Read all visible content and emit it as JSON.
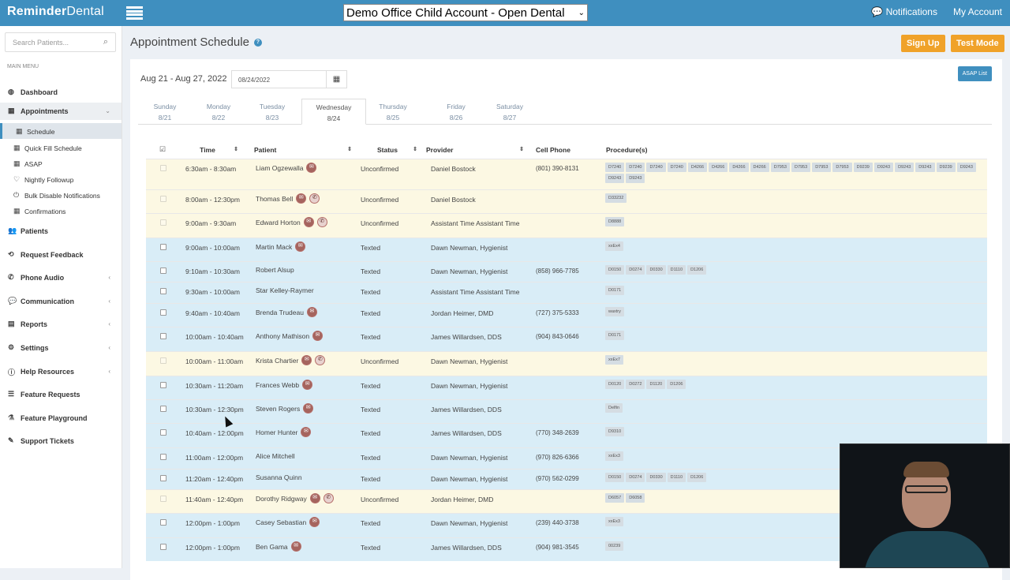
{
  "app": {
    "logo_bold": "Reminder",
    "logo_light": "Dental",
    "office": "Demo Office Child Account - Open Dental",
    "notifications": "Notifications",
    "my_account": "My Account"
  },
  "sidebar": {
    "search_placeholder": "Search Patients...",
    "main_menu": "MAIN MENU",
    "items": [
      {
        "label": "Dashboard",
        "icon": "dashboard-icon",
        "glyph": "◍"
      },
      {
        "label": "Appointments",
        "icon": "calendar-icon",
        "glyph": "▦",
        "chev": "⌄"
      },
      {
        "label": "Schedule",
        "icon": "calendar-icon",
        "glyph": "▦",
        "sub": true
      },
      {
        "label": "Quick Fill Schedule",
        "icon": "calendar-icon",
        "glyph": "▦",
        "sub": true
      },
      {
        "label": "ASAP",
        "icon": "calendar-icon",
        "glyph": "▦",
        "sub": true
      },
      {
        "label": "Nightly Followup",
        "icon": "heartbeat-icon",
        "glyph": "♡",
        "sub": true
      },
      {
        "label": "Bulk Disable Notifications",
        "icon": "power-icon",
        "glyph": "⏻",
        "sub": true
      },
      {
        "label": "Confirmations",
        "icon": "calendar-icon",
        "glyph": "▦",
        "sub": true
      },
      {
        "label": "Patients",
        "icon": "users-icon",
        "glyph": "👥"
      },
      {
        "label": "Request Feedback",
        "icon": "feedback-icon",
        "glyph": "⟲"
      },
      {
        "label": "Phone Audio",
        "icon": "phone-icon",
        "glyph": "✆",
        "chev": "‹"
      },
      {
        "label": "Communication",
        "icon": "comments-icon",
        "glyph": "💬",
        "chev": "‹"
      },
      {
        "label": "Reports",
        "icon": "reports-icon",
        "glyph": "▤",
        "chev": "‹"
      },
      {
        "label": "Settings",
        "icon": "gear-icon",
        "glyph": "⚙",
        "chev": "‹"
      },
      {
        "label": "Help Resources",
        "icon": "info-icon",
        "glyph": "ⓘ",
        "chev": "‹"
      },
      {
        "label": "Feature Requests",
        "icon": "list-icon",
        "glyph": "☰"
      },
      {
        "label": "Feature Playground",
        "icon": "flask-icon",
        "glyph": "⚗"
      },
      {
        "label": "Support Tickets",
        "icon": "ticket-icon",
        "glyph": "✎"
      }
    ]
  },
  "main": {
    "title": "Appointment Schedule",
    "sign_up": "Sign Up",
    "test_mode": "Test Mode",
    "asap_list": "ASAP List",
    "range": "Aug 21 - Aug 27, 2022",
    "date_value": "08/24/2022",
    "days": [
      {
        "day": "Sunday",
        "date": "8/21"
      },
      {
        "day": "Monday",
        "date": "8/22"
      },
      {
        "day": "Tuesday",
        "date": "8/23"
      },
      {
        "day": "Wednesday",
        "date": "8/24",
        "active": true
      },
      {
        "day": "Thursday",
        "date": "8/25"
      },
      {
        "day": "Friday",
        "date": "8/26"
      },
      {
        "day": "Saturday",
        "date": "8/27"
      }
    ],
    "columns": [
      "Time",
      "Patient",
      "Status",
      "Provider",
      "Cell Phone",
      "Procedure(s)"
    ],
    "rows": [
      {
        "time": "6:30am - 8:30am",
        "patient": "Liam Ogzewalla",
        "mail": true,
        "phone": false,
        "status": "Unconfirmed",
        "provider": "Daniel Bostock",
        "cell": "(801) 390-8131",
        "procs": [
          "D7240",
          "D7240",
          "D7240",
          "D7240",
          "D4266",
          "D4266",
          "D4266",
          "D4266",
          "D7953",
          "D7953",
          "D7953",
          "D7953",
          "D9239",
          "D9243",
          "D9243",
          "D9243",
          "D9239",
          "D9243",
          "D9243",
          "D9243"
        ]
      },
      {
        "time": "8:00am - 12:30pm",
        "patient": "Thomas Bell",
        "mail": true,
        "phone": true,
        "status": "Unconfirmed",
        "provider": "Daniel Bostock",
        "cell": "",
        "procs": [
          "D33232"
        ]
      },
      {
        "time": "9:00am - 9:30am",
        "patient": "Edward Horton",
        "mail": true,
        "phone": true,
        "status": "Unconfirmed",
        "provider": "Assistant Time Assistant Time",
        "cell": "",
        "procs": [
          "D8888"
        ]
      },
      {
        "time": "9:00am - 10:00am",
        "patient": "Martin Mack",
        "mail": true,
        "phone": false,
        "status": "Texted",
        "provider": "Dawn Newman, Hygienist",
        "cell": "",
        "procs": [
          "xxEx4"
        ]
      },
      {
        "time": "9:10am - 10:30am",
        "patient": "Robert Alsup",
        "mail": false,
        "phone": false,
        "status": "Texted",
        "provider": "Dawn Newman, Hygienist",
        "cell": "(858) 966-7785",
        "procs": [
          "D0150",
          "D0274",
          "D0330",
          "D1110",
          "D1206"
        ]
      },
      {
        "time": "9:30am - 10:00am",
        "patient": "Star Kelley-Raymer",
        "mail": false,
        "phone": false,
        "status": "Texted",
        "provider": "Assistant Time Assistant Time",
        "cell": "",
        "procs": [
          "D0171"
        ]
      },
      {
        "time": "9:40am - 10:40am",
        "patient": "Brenda Trudeau",
        "mail": true,
        "phone": false,
        "status": "Texted",
        "provider": "Jordan Heimer, DMD",
        "cell": "(727) 375-5333",
        "procs": [
          "waxtry"
        ]
      },
      {
        "time": "10:00am - 10:40am",
        "patient": "Anthony Mathison",
        "mail": true,
        "phone": false,
        "status": "Texted",
        "provider": "James Willardsen, DDS",
        "cell": "(904) 843-0646",
        "procs": [
          "D0171"
        ]
      },
      {
        "time": "10:00am - 11:00am",
        "patient": "Krista Chartier",
        "mail": true,
        "phone": true,
        "status": "Unconfirmed",
        "provider": "Dawn Newman, Hygienist",
        "cell": "",
        "procs": [
          "xxEx7"
        ]
      },
      {
        "time": "10:30am - 11:20am",
        "patient": "Frances Webb",
        "mail": true,
        "phone": false,
        "status": "Texted",
        "provider": "Dawn Newman, Hygienist",
        "cell": "",
        "procs": [
          "D0120",
          "D0272",
          "D1120",
          "D1206"
        ]
      },
      {
        "time": "10:30am - 12:30pm",
        "patient": "Steven Rogers",
        "mail": true,
        "phone": false,
        "status": "Texted",
        "provider": "James Willardsen, DDS",
        "cell": "",
        "procs": [
          "Delfin"
        ]
      },
      {
        "time": "10:40am - 12:00pm",
        "patient": "Homer Hunter",
        "mail": true,
        "phone": false,
        "status": "Texted",
        "provider": "James Willardsen, DDS",
        "cell": "(770) 348-2639",
        "procs": [
          "D9310"
        ]
      },
      {
        "time": "11:00am - 12:00pm",
        "patient": "Alice Mitchell",
        "mail": false,
        "phone": false,
        "status": "Texted",
        "provider": "Dawn Newman, Hygienist",
        "cell": "(970) 826-6366",
        "procs": [
          "xxEx3"
        ]
      },
      {
        "time": "11:20am - 12:40pm",
        "patient": "Susanna Quinn",
        "mail": false,
        "phone": false,
        "status": "Texted",
        "provider": "Dawn Newman, Hygienist",
        "cell": "(970) 562-0299",
        "procs": [
          "D0150",
          "D0274",
          "D0330",
          "D1110",
          "D1206"
        ]
      },
      {
        "time": "11:40am - 12:40pm",
        "patient": "Dorothy Ridgway",
        "mail": true,
        "phone": true,
        "status": "Unconfirmed",
        "provider": "Jordan Heimer, DMD",
        "cell": "",
        "procs": [
          "D6057",
          "D6058"
        ]
      },
      {
        "time": "12:00pm - 1:00pm",
        "patient": "Casey Sebastian",
        "mail": true,
        "phone": false,
        "status": "Texted",
        "provider": "Dawn Newman, Hygienist",
        "cell": "(239) 440-3738",
        "procs": [
          "xxEx3"
        ]
      },
      {
        "time": "12:00pm - 1:00pm",
        "patient": "Ben Gama",
        "mail": true,
        "phone": false,
        "status": "Texted",
        "provider": "James Willardsen, DDS",
        "cell": "(904) 981-3545",
        "procs": [
          "00239"
        ]
      }
    ]
  },
  "colors": {
    "brand": "#3f8fbf",
    "orange": "#f0a229",
    "unconfirmed": "#fcf8e3",
    "texted": "#d9edf7"
  }
}
